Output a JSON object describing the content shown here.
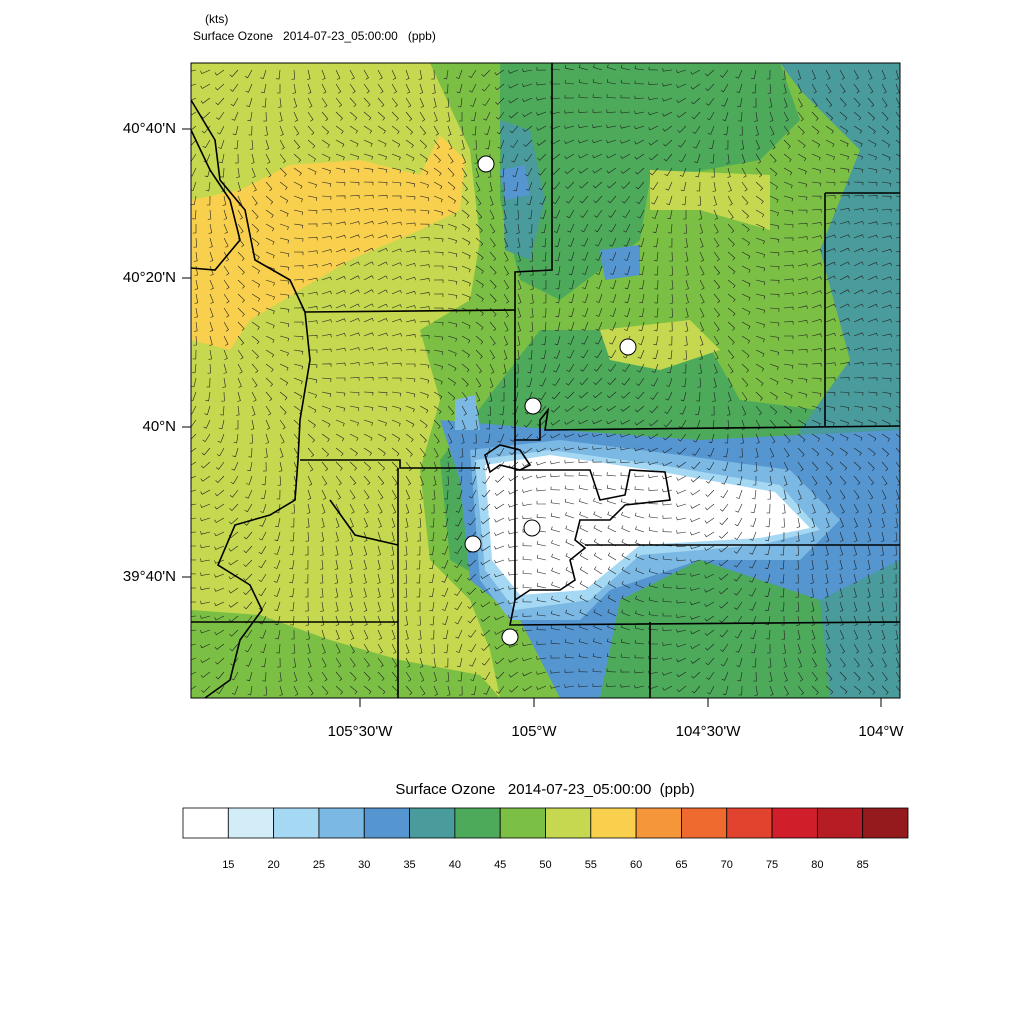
{
  "header": {
    "units": "(kts)",
    "title": "Surface Ozone   2014-07-23_05:00:00   (ppb)"
  },
  "map": {
    "lat_ticks": [
      "40°40'N",
      "40°20'N",
      "40°N",
      "39°40'N"
    ],
    "lon_ticks": [
      "105°30'W",
      "105°W",
      "104°30'W",
      "104°W"
    ]
  },
  "colorbar": {
    "title": "Surface Ozone   2014-07-23_05:00:00  (ppb)",
    "levels": [
      15,
      20,
      25,
      30,
      35,
      40,
      45,
      50,
      55,
      60,
      65,
      70,
      75,
      80,
      85
    ],
    "colors": [
      "#ffffff",
      "#d2ecf8",
      "#a5d8f3",
      "#7bb8e3",
      "#5596d1",
      "#4a9b9b",
      "#4caa5a",
      "#7bc045",
      "#c5d84f",
      "#f9d04d",
      "#f6963a",
      "#ef6a2e",
      "#e2432e",
      "#d01f2a",
      "#b51c24",
      "#941a1d"
    ]
  }
}
